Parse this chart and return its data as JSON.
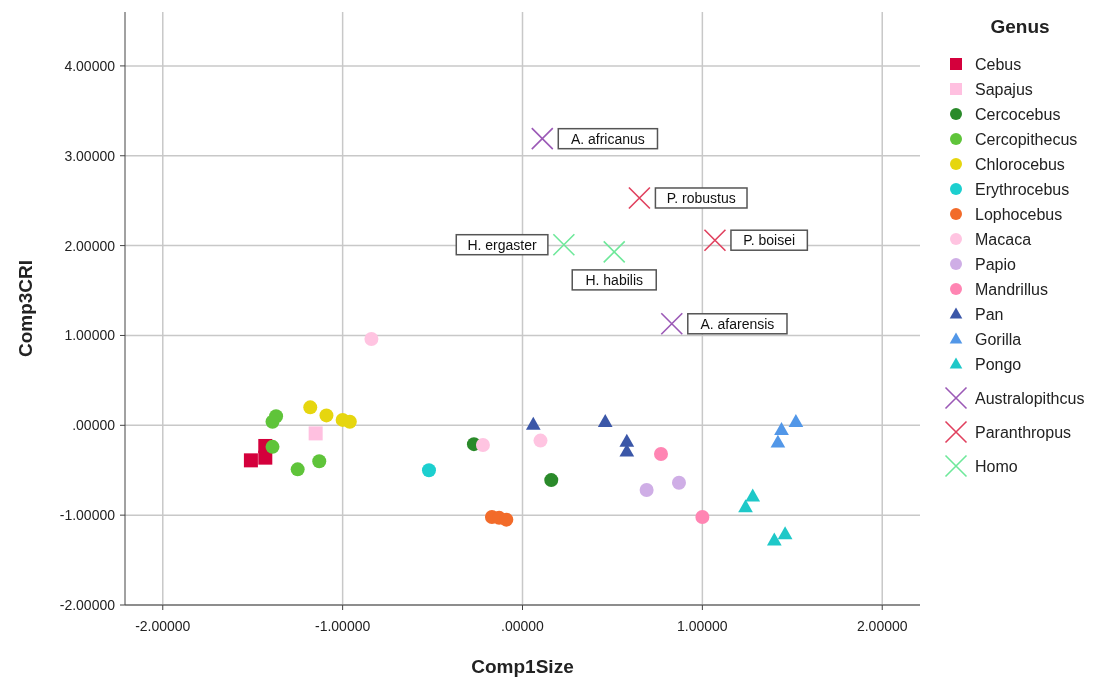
{
  "chart_data": {
    "type": "scatter",
    "xlabel": "Comp1Size",
    "ylabel": "Comp3CRI",
    "legend_title": "Genus",
    "legend": "right",
    "grid": true,
    "xlim": [
      -2.21,
      2.21
    ],
    "ylim": [
      -2,
      4.6
    ],
    "xticks": [
      {
        "value": -2,
        "label": "-2.00000"
      },
      {
        "value": -1,
        "label": "-1.00000"
      },
      {
        "value": 0,
        "label": ".00000"
      },
      {
        "value": 1,
        "label": "1.00000"
      },
      {
        "value": 2,
        "label": "2.00000"
      }
    ],
    "yticks": [
      {
        "value": -2,
        "label": "-2.00000"
      },
      {
        "value": -1,
        "label": "-1.00000"
      },
      {
        "value": 0,
        "label": ".00000"
      },
      {
        "value": 1,
        "label": "1.00000"
      },
      {
        "value": 2,
        "label": "2.00000"
      },
      {
        "value": 3,
        "label": "3.00000"
      },
      {
        "value": 4,
        "label": "4.00000"
      }
    ],
    "series": [
      {
        "name": "Cebus",
        "color": "#d4003c",
        "marker": "square",
        "x": [
          -1.51,
          -1.43,
          -1.43
        ],
        "values": [
          -0.39,
          -0.36,
          -0.23
        ]
      },
      {
        "name": "Sapajus",
        "color": "#ffc0e0",
        "marker": "square",
        "x": [
          -1.15
        ],
        "values": [
          -0.09
        ]
      },
      {
        "name": "Cercocebus",
        "color": "#2a8a2a",
        "marker": "circle",
        "x": [
          -0.27,
          0.16
        ],
        "values": [
          -0.21,
          -0.61
        ]
      },
      {
        "name": "Cercopithecus",
        "color": "#5fc43a",
        "marker": "circle",
        "x": [
          -1.37,
          -1.39,
          -1.39,
          -1.25,
          -1.13
        ],
        "values": [
          0.1,
          0.04,
          -0.24,
          -0.49,
          -0.4
        ]
      },
      {
        "name": "Chlorocebus",
        "color": "#e6d60f",
        "marker": "circle",
        "x": [
          -1.18,
          -1.09,
          -1.0,
          -0.96
        ],
        "values": [
          0.2,
          0.11,
          0.06,
          0.04
        ]
      },
      {
        "name": "Erythrocebus",
        "color": "#1ccfcf",
        "marker": "circle",
        "x": [
          -0.52
        ],
        "values": [
          -0.5
        ]
      },
      {
        "name": "Lophocebus",
        "color": "#f26b2a",
        "marker": "circle",
        "x": [
          -0.17,
          -0.13,
          -0.09
        ],
        "values": [
          -1.02,
          -1.03,
          -1.05
        ]
      },
      {
        "name": "Macaca",
        "color": "#ffc4e1",
        "marker": "circle",
        "x": [
          -0.84,
          -0.22,
          0.1
        ],
        "values": [
          0.96,
          -0.22,
          -0.17
        ]
      },
      {
        "name": "Papio",
        "color": "#cfaee6",
        "marker": "circle",
        "x": [
          0.69,
          0.87
        ],
        "values": [
          -0.72,
          -0.64
        ]
      },
      {
        "name": "Mandrillus",
        "color": "#ff85b3",
        "marker": "circle",
        "x": [
          0.77,
          1.0
        ],
        "values": [
          -0.32,
          -1.02
        ]
      },
      {
        "name": "Pan",
        "color": "#3b57a8",
        "marker": "triangle",
        "x": [
          0.06,
          0.46,
          0.58,
          0.58
        ],
        "values": [
          0.01,
          0.04,
          -0.18,
          -0.29
        ]
      },
      {
        "name": "Gorilla",
        "color": "#5297e8",
        "marker": "triangle",
        "x": [
          1.52,
          1.44,
          1.42
        ],
        "values": [
          0.04,
          -0.05,
          -0.19
        ]
      },
      {
        "name": "Pongo",
        "color": "#1ec8c8",
        "marker": "triangle",
        "x": [
          1.28,
          1.24,
          1.46,
          1.4
        ],
        "values": [
          -0.79,
          -0.91,
          -1.21,
          -1.28
        ]
      },
      {
        "name": "Australopithcus",
        "color": "#9b59b6",
        "marker": "cross",
        "x": [
          0.11,
          0.83
        ],
        "values": [
          3.19,
          1.13
        ]
      },
      {
        "name": "Paranthropus",
        "color": "#e0405e",
        "marker": "cross",
        "x": [
          0.65,
          1.07
        ],
        "values": [
          2.53,
          2.06
        ]
      },
      {
        "name": "Homo",
        "color": "#6ee89a",
        "marker": "cross",
        "x": [
          0.23,
          0.51
        ],
        "values": [
          2.01,
          1.93
        ]
      }
    ],
    "annotations": [
      {
        "text": "A. africanus",
        "x": 0.11,
        "y": 3.19
      },
      {
        "text": "P. robustus",
        "x": 0.65,
        "y": 2.53
      },
      {
        "text": "P. boisei",
        "x": 1.07,
        "y": 2.06
      },
      {
        "text": "H. ergaster",
        "x": 0.23,
        "y": 2.01
      },
      {
        "text": "H. habilis",
        "x": 0.51,
        "y": 1.93
      },
      {
        "text": "A. afarensis",
        "x": 0.83,
        "y": 1.13
      }
    ]
  }
}
